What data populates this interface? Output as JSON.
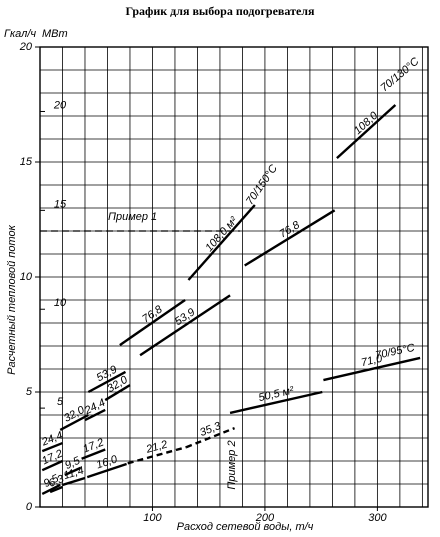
{
  "chart_data": {
    "type": "segments",
    "title": "График для выбора подогревателя",
    "y_unit": "Гкал/ч",
    "y2_unit": "МВт",
    "ylabel": "Расчетный тепловой поток",
    "xlabel": "Расход сетевой воды, т/ч",
    "xlim": [
      0,
      345
    ],
    "xticks": [
      100,
      200,
      300
    ],
    "ylim": [
      0,
      20
    ],
    "yticks": [
      0,
      5,
      10,
      15,
      20
    ],
    "y2lim": [
      0,
      23.26
    ],
    "y2ticks": [
      5,
      10,
      15,
      20
    ],
    "grid": true,
    "grid_step": {
      "x": 20,
      "y": 1
    },
    "color": "#000000",
    "segments": [
      {
        "name": "9,5",
        "x": [
          2,
          18
        ],
        "y": [
          0.57,
          0.96
        ]
      },
      {
        "name": "17,2",
        "x": [
          2,
          20
        ],
        "y": [
          1.6,
          2.0
        ]
      },
      {
        "name": "24,4",
        "x": [
          2,
          20
        ],
        "y": [
          2.43,
          2.78
        ]
      },
      {
        "name": "32,0",
        "x": [
          18,
          43
        ],
        "y": [
          3.35,
          4.0
        ]
      },
      {
        "name": "53,9",
        "x": [
          43,
          76
        ],
        "y": [
          5.0,
          5.87
        ]
      },
      {
        "name": "76,8",
        "x": [
          71,
          129
        ],
        "y": [
          7.04,
          9.0
        ]
      },
      {
        "name": "108,0 м²",
        "x": [
          132,
          191
        ],
        "y": [
          9.87,
          13.13
        ]
      },
      {
        "name": "9,5",
        "x": [
          22,
          36
        ],
        "y": [
          1.39,
          1.7
        ]
      },
      {
        "name": "17,2",
        "x": [
          37,
          58
        ],
        "y": [
          2.1,
          2.5
        ]
      },
      {
        "name": "24,4",
        "x": [
          40,
          58
        ],
        "y": [
          3.78,
          4.22
        ]
      },
      {
        "name": "32,0",
        "x": [
          58,
          80
        ],
        "y": [
          4.65,
          5.3
        ]
      },
      {
        "name": "53,9",
        "x": [
          89,
          169
        ],
        "y": [
          6.6,
          9.2
        ]
      },
      {
        "name": "76,8",
        "x": [
          182,
          262
        ],
        "y": [
          10.5,
          12.9
        ]
      },
      {
        "name": "108,0",
        "x": [
          264,
          316
        ],
        "y": [
          15.17,
          17.48
        ]
      },
      {
        "name": "6,3",
        "x": [
          9,
          20
        ],
        "y": [
          0.65,
          0.87
        ]
      },
      {
        "name": "11,4",
        "x": [
          20,
          40
        ],
        "y": [
          0.96,
          1.26
        ]
      },
      {
        "name": "16,0",
        "x": [
          42,
          77
        ],
        "y": [
          1.3,
          1.87
        ]
      },
      {
        "name": "21,2",
        "x": [
          78,
          130
        ],
        "y": [
          1.9,
          2.6
        ],
        "dashed": true
      },
      {
        "name": "35,3",
        "x": [
          130,
          173
        ],
        "y": [
          2.6,
          3.43
        ],
        "dashed": true
      },
      {
        "name": "50,5 м²",
        "x": [
          169,
          251
        ],
        "y": [
          4.09,
          5.0
        ]
      },
      {
        "name": "71,0",
        "x": [
          252,
          338
        ],
        "y": [
          5.52,
          6.48
        ]
      }
    ],
    "reference": {
      "name": "Пример 1",
      "x": [
        0,
        178
      ],
      "y": [
        12,
        12
      ]
    },
    "annotations": [
      "Пример 2",
      "70/95°C",
      "70/150°C",
      "70/130°C"
    ]
  }
}
